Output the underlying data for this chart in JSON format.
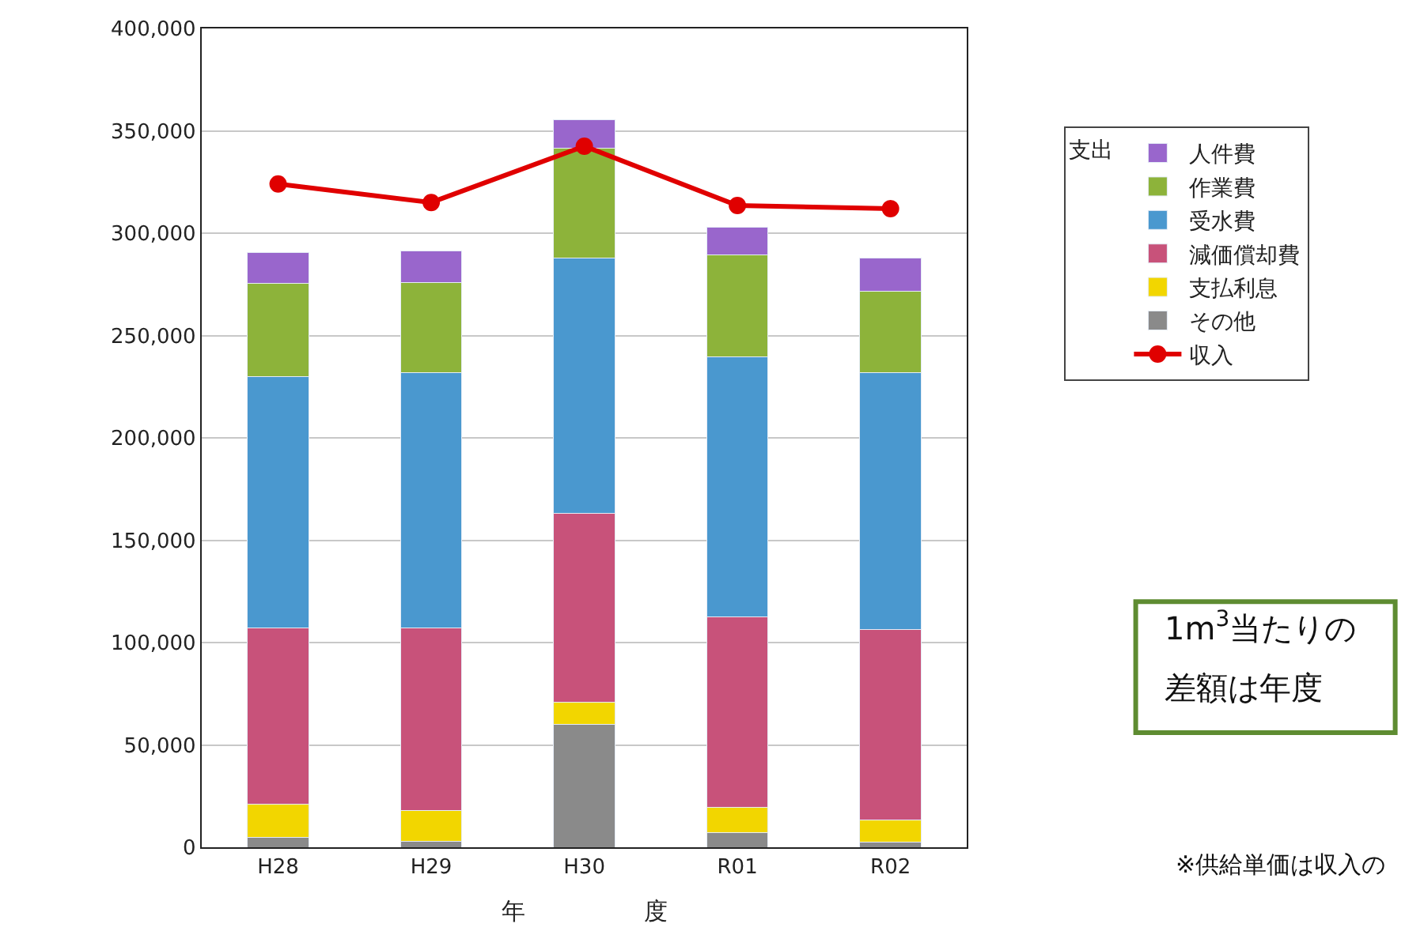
{
  "chart_data": {
    "type": "bar",
    "stacked": true,
    "xlabel": "年　　　　　度",
    "legend_title": "支出",
    "legend": "right",
    "grid": "y",
    "categories": [
      "H28",
      "H29",
      "H30",
      "R01",
      "R02"
    ],
    "ylim": [
      0,
      400000
    ],
    "yticks": [
      0,
      {
        "value": 50000,
        "label": "50,000"
      },
      {
        "value": 100000,
        "label": "100,000"
      },
      {
        "value": 150000,
        "label": "150,000"
      },
      {
        "value": 200000,
        "label": "200,000"
      },
      {
        "value": 250000,
        "label": "250,000"
      },
      {
        "value": 300000,
        "label": "300,000"
      },
      {
        "value": 350000,
        "label": "350,000"
      },
      {
        "value": 400000,
        "label": "400,000"
      }
    ],
    "series": [
      {
        "name": "その他",
        "color": "#8a8a8a",
        "values": [
          5000,
          3000,
          60000,
          7000,
          2500
        ]
      },
      {
        "name": "支払利息",
        "color": "#f2d600",
        "values": [
          16000,
          15000,
          11000,
          12500,
          11000
        ]
      },
      {
        "name": "減価償却費",
        "color": "#c8527a",
        "values": [
          86000,
          89000,
          92000,
          93000,
          93000
        ]
      },
      {
        "name": "受水費",
        "color": "#4a98cf",
        "values": [
          123000,
          125000,
          125000,
          127000,
          125500
        ]
      },
      {
        "name": "作業費",
        "color": "#8db33a",
        "values": [
          45500,
          44000,
          53500,
          50000,
          39500
        ]
      },
      {
        "name": "人件費",
        "color": "#9966cc",
        "values": [
          15000,
          15500,
          14000,
          13500,
          16500
        ]
      },
      {
        "name": "収入",
        "color": "#e00000",
        "type": "line",
        "marker": "circle",
        "values": [
          324000,
          315000,
          342500,
          313500,
          312000
        ]
      }
    ],
    "annotations": [
      "1m$^{3}$当たりの",
      "差額は年度",
      "※供給単価は収入の"
    ]
  }
}
